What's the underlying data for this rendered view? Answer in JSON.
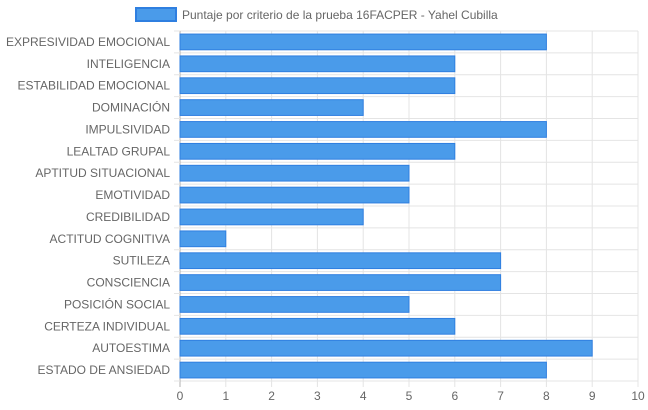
{
  "chart_data": {
    "type": "bar",
    "orientation": "horizontal",
    "categories": [
      "EXPRESIVIDAD EMOCIONAL",
      "INTELIGENCIA",
      "ESTABILIDAD EMOCIONAL",
      "DOMINACIÓN",
      "IMPULSIVIDAD",
      "LEALTAD GRUPAL",
      "APTITUD SITUACIONAL",
      "EMOTIVIDAD",
      "CREDIBILIDAD",
      "ACTITUD COGNITIVA",
      "SUTILEZA",
      "CONSCIENCIA",
      "POSICIÓN SOCIAL",
      "CERTEZA INDIVIDUAL",
      "AUTOESTIMA",
      "ESTADO DE ANSIEDAD"
    ],
    "series": [
      {
        "name": "Puntaje por criterio de la prueba 16FACPER - Yahel Cubilla",
        "values": [
          8,
          6,
          6,
          4,
          8,
          6,
          5,
          5,
          4,
          1,
          7,
          7,
          5,
          6,
          9,
          8
        ]
      }
    ],
    "xlim": [
      0,
      10
    ],
    "x_ticks": [
      "0",
      "1",
      "2",
      "3",
      "4",
      "5",
      "6",
      "7",
      "8",
      "9",
      "10"
    ],
    "grid": true,
    "legend_position": "top",
    "colors": {
      "bar_fill": "#4a9bea",
      "bar_border": "#2f7fe0",
      "grid": "#e4e4e4",
      "axis": "#b0b0b0",
      "text": "#666666"
    }
  }
}
